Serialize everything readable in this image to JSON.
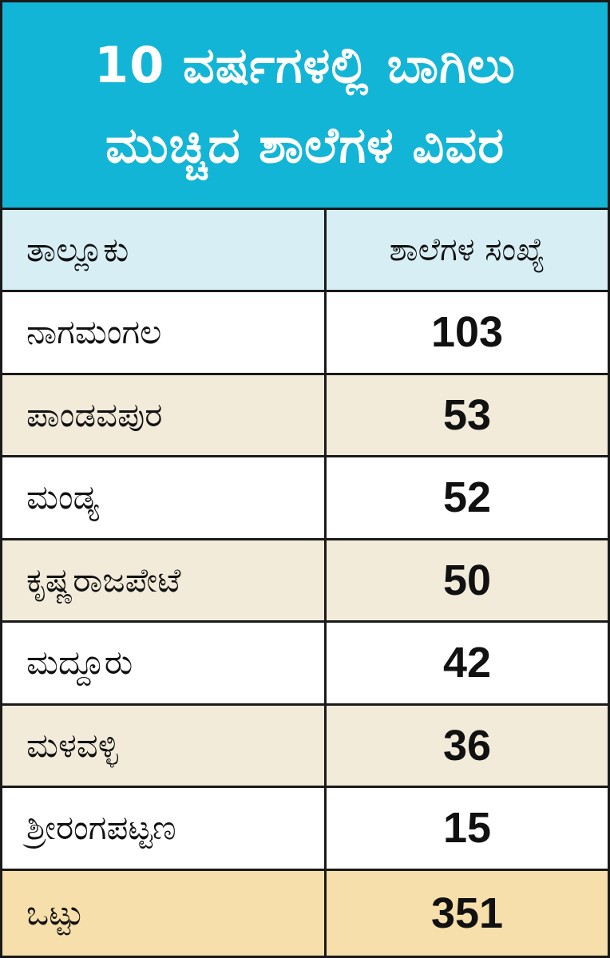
{
  "title": {
    "line1": "10 ವರ್ಷಗಳಲ್ಲಿ ಬಾಗಿಲು",
    "line2": "ಮುಚ್ಚಿದ ಶಾಲೆಗಳ ವಿವರ"
  },
  "colors": {
    "title_background": "#13b5d6",
    "header_background": "#d7eef5",
    "alt_row_background": "#f2ebda",
    "total_row_background": "#f7dfab",
    "border": "#1a1a1a"
  },
  "chart_data": {
    "type": "table",
    "title": "10 ವರ್ಷಗಳಲ್ಲಿ ಬಾಗಿಲು ಮುಚ್ಚಿದ ಶಾಲೆಗಳ ವಿವರ",
    "columns": [
      "ತಾಲ್ಲೂಕು",
      "ಶಾಲೆಗಳ ಸಂಖ್ಯೆ"
    ],
    "rows": [
      {
        "taluk": "ನಾಗಮಂಗಲ",
        "count": "103"
      },
      {
        "taluk": "ಪಾಂಡವಪುರ",
        "count": "53"
      },
      {
        "taluk": "ಮಂಡ್ಯ",
        "count": "52"
      },
      {
        "taluk": "ಕೃಷ್ಣರಾಜಪೇಟೆ",
        "count": "50"
      },
      {
        "taluk": "ಮದ್ದೂರು",
        "count": "42"
      },
      {
        "taluk": "ಮಳವಳ್ಳಿ",
        "count": "36"
      },
      {
        "taluk": "ಶ್ರೀರಂಗಪಟ್ಟಣ",
        "count": "15"
      }
    ],
    "total": {
      "label": "ಒಟ್ಟು",
      "count": "351"
    }
  }
}
